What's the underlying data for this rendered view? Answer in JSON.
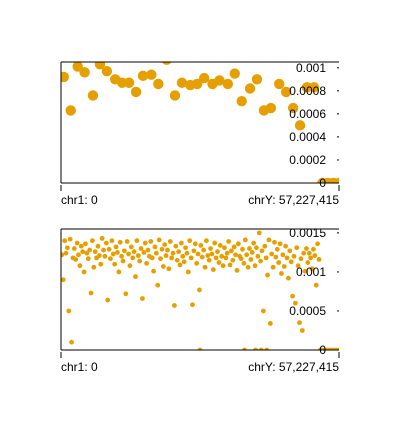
{
  "colors": {
    "point": "#e69f00",
    "frame": "#000000",
    "background": "#ffffff"
  },
  "chart_data": [
    {
      "type": "scatter",
      "title": "",
      "x_start_label": "chr1: 0",
      "x_end_label": "chrY: 57,227,415",
      "xlim": [
        0,
        100
      ],
      "ylim": [
        0,
        0.00105
      ],
      "y_ticks": [
        0,
        0.0002,
        0.0004,
        0.0006,
        0.0008,
        0.001
      ],
      "y_tick_labels": [
        "0",
        "0.0002",
        "0.0004",
        "0.0006",
        "0.0008",
        "0.001"
      ],
      "y_label_position": "inside-right",
      "grid": false,
      "point_size": "large",
      "points": [
        [
          1.0,
          0.00092
        ],
        [
          3.5,
          0.00063
        ],
        [
          6.0,
          0.00101
        ],
        [
          8.5,
          0.00096
        ],
        [
          11.5,
          0.00076
        ],
        [
          14.0,
          0.00103
        ],
        [
          16.5,
          0.00097
        ],
        [
          19.5,
          0.0009
        ],
        [
          22.0,
          0.00087
        ],
        [
          24.5,
          0.00087
        ],
        [
          27.0,
          0.00079
        ],
        [
          29.5,
          0.00093
        ],
        [
          32.5,
          0.00094
        ],
        [
          35.0,
          0.00086
        ],
        [
          38.0,
          0.00107
        ],
        [
          41.0,
          0.00076
        ],
        [
          43.5,
          0.00087
        ],
        [
          46.5,
          0.00085
        ],
        [
          49.0,
          0.00086
        ],
        [
          51.5,
          0.00091
        ],
        [
          54.5,
          0.00086
        ],
        [
          57.0,
          0.00089
        ],
        [
          60.0,
          0.00086
        ],
        [
          62.5,
          0.00095
        ],
        [
          65.0,
          0.00071
        ],
        [
          68.0,
          0.00082
        ],
        [
          70.5,
          0.0009
        ],
        [
          73.0,
          0.00063
        ],
        [
          75.5,
          0.00065
        ],
        [
          78.5,
          0.00086
        ],
        [
          81.0,
          0.00079
        ],
        [
          83.5,
          0.00065
        ],
        [
          86.0,
          0.0005
        ],
        [
          88.5,
          0.00083
        ],
        [
          91.0,
          0.00083
        ],
        [
          94.0,
          0.0
        ],
        [
          96.0,
          0.0
        ],
        [
          98.0,
          0.0
        ],
        [
          100.0,
          0.0
        ]
      ]
    },
    {
      "type": "scatter",
      "title": "",
      "x_start_label": "chr1: 0",
      "x_end_label": "chrY: 57,227,415",
      "xlim": [
        0,
        100
      ],
      "ylim": [
        0,
        0.00155
      ],
      "y_ticks": [
        0,
        0.0005,
        0.001,
        0.0015
      ],
      "y_tick_labels": [
        "0",
        "0.0005",
        "0.001",
        "0.0015"
      ],
      "y_label_position": "inside-right",
      "grid": false,
      "point_size": "small",
      "points": [
        [
          0.3,
          0.00122
        ],
        [
          0.8,
          0.0009
        ],
        [
          1.3,
          0.0014
        ],
        [
          1.8,
          0.00124
        ],
        [
          2.3,
          0.00131
        ],
        [
          2.8,
          0.0005
        ],
        [
          3.3,
          0.00142
        ],
        [
          3.8,
          0.0001
        ],
        [
          4.3,
          0.00118
        ],
        [
          4.8,
          0.0013
        ],
        [
          5.3,
          0.00116
        ],
        [
          5.8,
          0.00137
        ],
        [
          6.3,
          0.00122
        ],
        [
          6.8,
          0.00108
        ],
        [
          7.3,
          0.00133
        ],
        [
          7.8,
          0.00126
        ],
        [
          8.3,
          0.001
        ],
        [
          8.8,
          0.00136
        ],
        [
          9.3,
          0.00124
        ],
        [
          9.8,
          0.00117
        ],
        [
          10.3,
          0.00128
        ],
        [
          10.8,
          0.00073
        ],
        [
          11.3,
          0.0014
        ],
        [
          11.8,
          0.00106
        ],
        [
          12.3,
          0.00126
        ],
        [
          12.8,
          0.00118
        ],
        [
          13.3,
          0.00133
        ],
        [
          13.8,
          0.00121
        ],
        [
          14.3,
          0.0011
        ],
        [
          14.8,
          0.00143
        ],
        [
          15.3,
          0.00128
        ],
        [
          15.8,
          0.0012
        ],
        [
          16.3,
          0.00137
        ],
        [
          16.8,
          0.00064
        ],
        [
          17.3,
          0.00129
        ],
        [
          17.8,
          0.00117
        ],
        [
          18.3,
          0.0014
        ],
        [
          18.8,
          0.00123
        ],
        [
          19.3,
          0.0011
        ],
        [
          19.8,
          0.00132
        ],
        [
          20.3,
          0.00125
        ],
        [
          20.8,
          0.001
        ],
        [
          21.3,
          0.00138
        ],
        [
          21.8,
          0.0012
        ],
        [
          22.3,
          0.00114
        ],
        [
          22.8,
          0.00127
        ],
        [
          23.3,
          0.00072
        ],
        [
          23.8,
          0.00139
        ],
        [
          24.3,
          0.00123
        ],
        [
          24.8,
          0.00108
        ],
        [
          25.3,
          0.00132
        ],
        [
          25.8,
          0.00118
        ],
        [
          26.3,
          0.00126
        ],
        [
          26.8,
          0.00094
        ],
        [
          27.3,
          0.0014
        ],
        [
          27.8,
          0.00121
        ],
        [
          28.3,
          0.00114
        ],
        [
          28.8,
          0.0013
        ],
        [
          29.3,
          0.00066
        ],
        [
          29.8,
          0.00125
        ],
        [
          30.3,
          0.00137
        ],
        [
          30.8,
          0.00111
        ],
        [
          31.3,
          0.00128
        ],
        [
          31.8,
          0.0012
        ],
        [
          32.3,
          0.00139
        ],
        [
          32.8,
          0.00118
        ],
        [
          33.3,
          0.00101
        ],
        [
          33.8,
          0.00132
        ],
        [
          34.3,
          0.00124
        ],
        [
          34.8,
          0.00083
        ],
        [
          35.3,
          0.00141
        ],
        [
          35.8,
          0.00117
        ],
        [
          36.3,
          0.00129
        ],
        [
          36.8,
          0.00107
        ],
        [
          37.3,
          0.00135
        ],
        [
          37.8,
          0.00121
        ],
        [
          38.3,
          0.00128
        ],
        [
          38.8,
          0.00104
        ],
        [
          39.3,
          0.00139
        ],
        [
          39.8,
          0.00118
        ],
        [
          40.3,
          0.00124
        ],
        [
          40.8,
          0.00057
        ],
        [
          41.3,
          0.00133
        ],
        [
          41.8,
          0.00115
        ],
        [
          42.3,
          0.00126
        ],
        [
          42.8,
          0.00109
        ],
        [
          43.3,
          0.00137
        ],
        [
          43.8,
          0.0012
        ],
        [
          44.3,
          0.00113
        ],
        [
          44.8,
          0.00131
        ],
        [
          45.3,
          0.00124
        ],
        [
          45.8,
          0.001
        ],
        [
          46.3,
          0.0014
        ],
        [
          46.8,
          0.00118
        ],
        [
          47.3,
          0.00058
        ],
        [
          47.8,
          0.00127
        ],
        [
          48.3,
          0.00136
        ],
        [
          48.8,
          0.00111
        ],
        [
          49.3,
          0.00123
        ],
        [
          49.8,
          0.00077
        ],
        [
          50.3,
          0.00134
        ],
        [
          50.8,
          0.00119
        ],
        [
          51.3,
          0.00128
        ],
        [
          51.8,
          0.00106
        ],
        [
          52.3,
          0.0014
        ],
        [
          52.8,
          0.00121
        ],
        [
          53.3,
          0.00115
        ],
        [
          53.8,
          0.0013
        ],
        [
          54.3,
          0.00123
        ],
        [
          54.8,
          0.00103
        ],
        [
          55.3,
          0.00137
        ],
        [
          55.8,
          0.00118
        ],
        [
          56.3,
          0.00126
        ],
        [
          56.8,
          0.00112
        ],
        [
          57.3,
          0.00134
        ],
        [
          57.8,
          0.0012
        ],
        [
          58.3,
          0.00108
        ],
        [
          58.8,
          0.00131
        ],
        [
          59.3,
          0.00118
        ],
        [
          59.8,
          0.00124
        ],
        [
          60.3,
          0.00139
        ],
        [
          60.8,
          0.00109
        ],
        [
          61.3,
          0.00127
        ],
        [
          61.8,
          0.00115
        ],
        [
          62.3,
          0.00132
        ],
        [
          62.8,
          0.00122
        ],
        [
          63.3,
          0.00102
        ],
        [
          63.8,
          0.00136
        ],
        [
          64.3,
          0.0012
        ],
        [
          64.8,
          0.00117
        ],
        [
          65.3,
          0.00129
        ],
        [
          65.8,
          0.00111
        ],
        [
          66.3,
          0.00141
        ],
        [
          66.8,
          0.00122
        ],
        [
          67.3,
          0.00106
        ],
        [
          67.8,
          0.0013
        ],
        [
          68.3,
          0.00116
        ],
        [
          68.8,
          0.00125
        ],
        [
          69.3,
          0.00137
        ],
        [
          69.8,
          0.00108
        ],
        [
          70.3,
          0.00131
        ],
        [
          70.8,
          0.0012
        ],
        [
          71.3,
          0.0015
        ],
        [
          71.8,
          0.00114
        ],
        [
          72.3,
          0.00127
        ],
        [
          72.8,
          0.0005
        ],
        [
          73.3,
          0.00133
        ],
        [
          73.8,
          0.00118
        ],
        [
          74.3,
          0.00096
        ],
        [
          74.8,
          0.00141
        ],
        [
          75.3,
          0.00034
        ],
        [
          75.8,
          0.00123
        ],
        [
          76.3,
          0.00106
        ],
        [
          76.8,
          0.00138
        ],
        [
          77.3,
          0.00119
        ],
        [
          77.8,
          0.00129
        ],
        [
          78.3,
          0.00112
        ],
        [
          78.8,
          0.00136
        ],
        [
          79.3,
          0.00098
        ],
        [
          79.8,
          0.00122
        ],
        [
          80.3,
          0.00107
        ],
        [
          80.8,
          0.00133
        ],
        [
          81.3,
          0.00118
        ],
        [
          81.8,
          0.00092
        ],
        [
          82.3,
          0.00127
        ],
        [
          82.8,
          0.00113
        ],
        [
          83.3,
          0.00069
        ],
        [
          83.8,
          0.0012
        ],
        [
          84.3,
          0.0006
        ],
        [
          84.8,
          0.00131
        ],
        [
          85.3,
          0.00108
        ],
        [
          85.8,
          0.00035
        ],
        [
          86.3,
          0.00117
        ],
        [
          86.8,
          0.00025
        ],
        [
          87.3,
          0.00124
        ],
        [
          87.8,
          0.00101
        ],
        [
          88.3,
          0.0013
        ],
        [
          88.8,
          0.00112
        ],
        [
          89.3,
          0.00124
        ],
        [
          89.8,
          0.00118
        ],
        [
          90.3,
          0.00104
        ],
        [
          90.8,
          0.00129
        ],
        [
          91.3,
          0.00121
        ],
        [
          91.8,
          0.00083
        ],
        [
          92.3,
          0.00136
        ],
        [
          92.8,
          0.00116
        ],
        [
          93.3,
          0.0
        ],
        [
          94.0,
          0.0
        ],
        [
          95.0,
          0.0
        ],
        [
          96.0,
          0.0
        ],
        [
          97.0,
          0.0
        ],
        [
          98.0,
          0.0
        ],
        [
          99.0,
          0.0
        ],
        [
          100.0,
          0.0
        ],
        [
          50.0,
          0.0
        ],
        [
          66.0,
          0.0
        ],
        [
          70.0,
          0.0
        ],
        [
          72.0,
          0.0
        ],
        [
          74.0,
          0.0
        ]
      ]
    }
  ]
}
